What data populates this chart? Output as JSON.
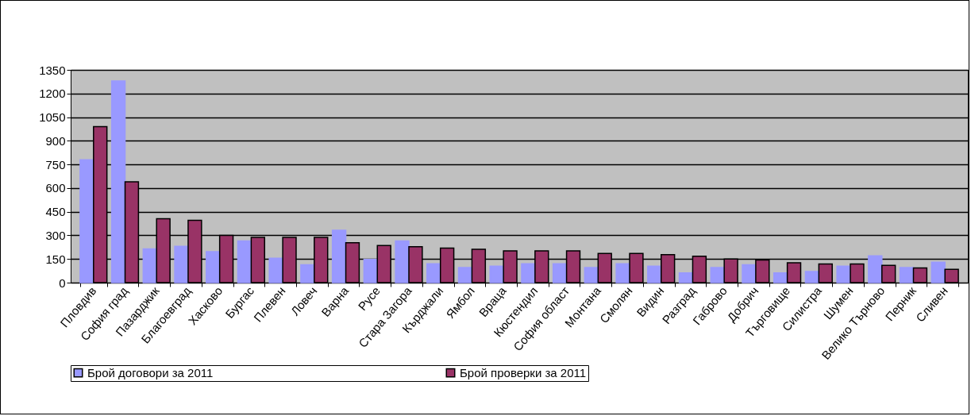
{
  "chart_data": {
    "type": "bar",
    "categories": [
      "Пловдив",
      "София град",
      "Пазарджик",
      "Благоевград",
      "Хасково",
      "Бургас",
      "Плевен",
      "Ловеч",
      "Варна",
      "Русе",
      "Стара Загора",
      "Кърджали",
      "Ямбол",
      "Враца",
      "Кюстендил",
      "София област",
      "Монтана",
      "Смолян",
      "Видин",
      "Разград",
      "Габрово",
      "Добрич",
      "Търговище",
      "Силистра",
      "Шумен",
      "Велико Търново",
      "Перник",
      "Сливен"
    ],
    "series": [
      {
        "name": "Брой договори за 2011",
        "color": "#9999ff",
        "values": [
          780,
          1280,
          214,
          231,
          197,
          265,
          155,
          113,
          332,
          147,
          265,
          120,
          96,
          104,
          120,
          120,
          96,
          120,
          104,
          62,
          96,
          113,
          62,
          71,
          104,
          170,
          96,
          130
        ]
      },
      {
        "name": "Брой проверки за 2011",
        "color": "#993366",
        "values": [
          990,
          640,
          405,
          396,
          300,
          287,
          287,
          287,
          253,
          236,
          228,
          219,
          211,
          202,
          202,
          202,
          185,
          185,
          177,
          167,
          150,
          143,
          126,
          118,
          118,
          110,
          93,
          84
        ]
      }
    ],
    "ylim": [
      0,
      1350
    ],
    "yticks": [
      0,
      150,
      300,
      450,
      600,
      750,
      900,
      1050,
      1200,
      1350
    ],
    "grid": "y",
    "legend": "bottom"
  }
}
